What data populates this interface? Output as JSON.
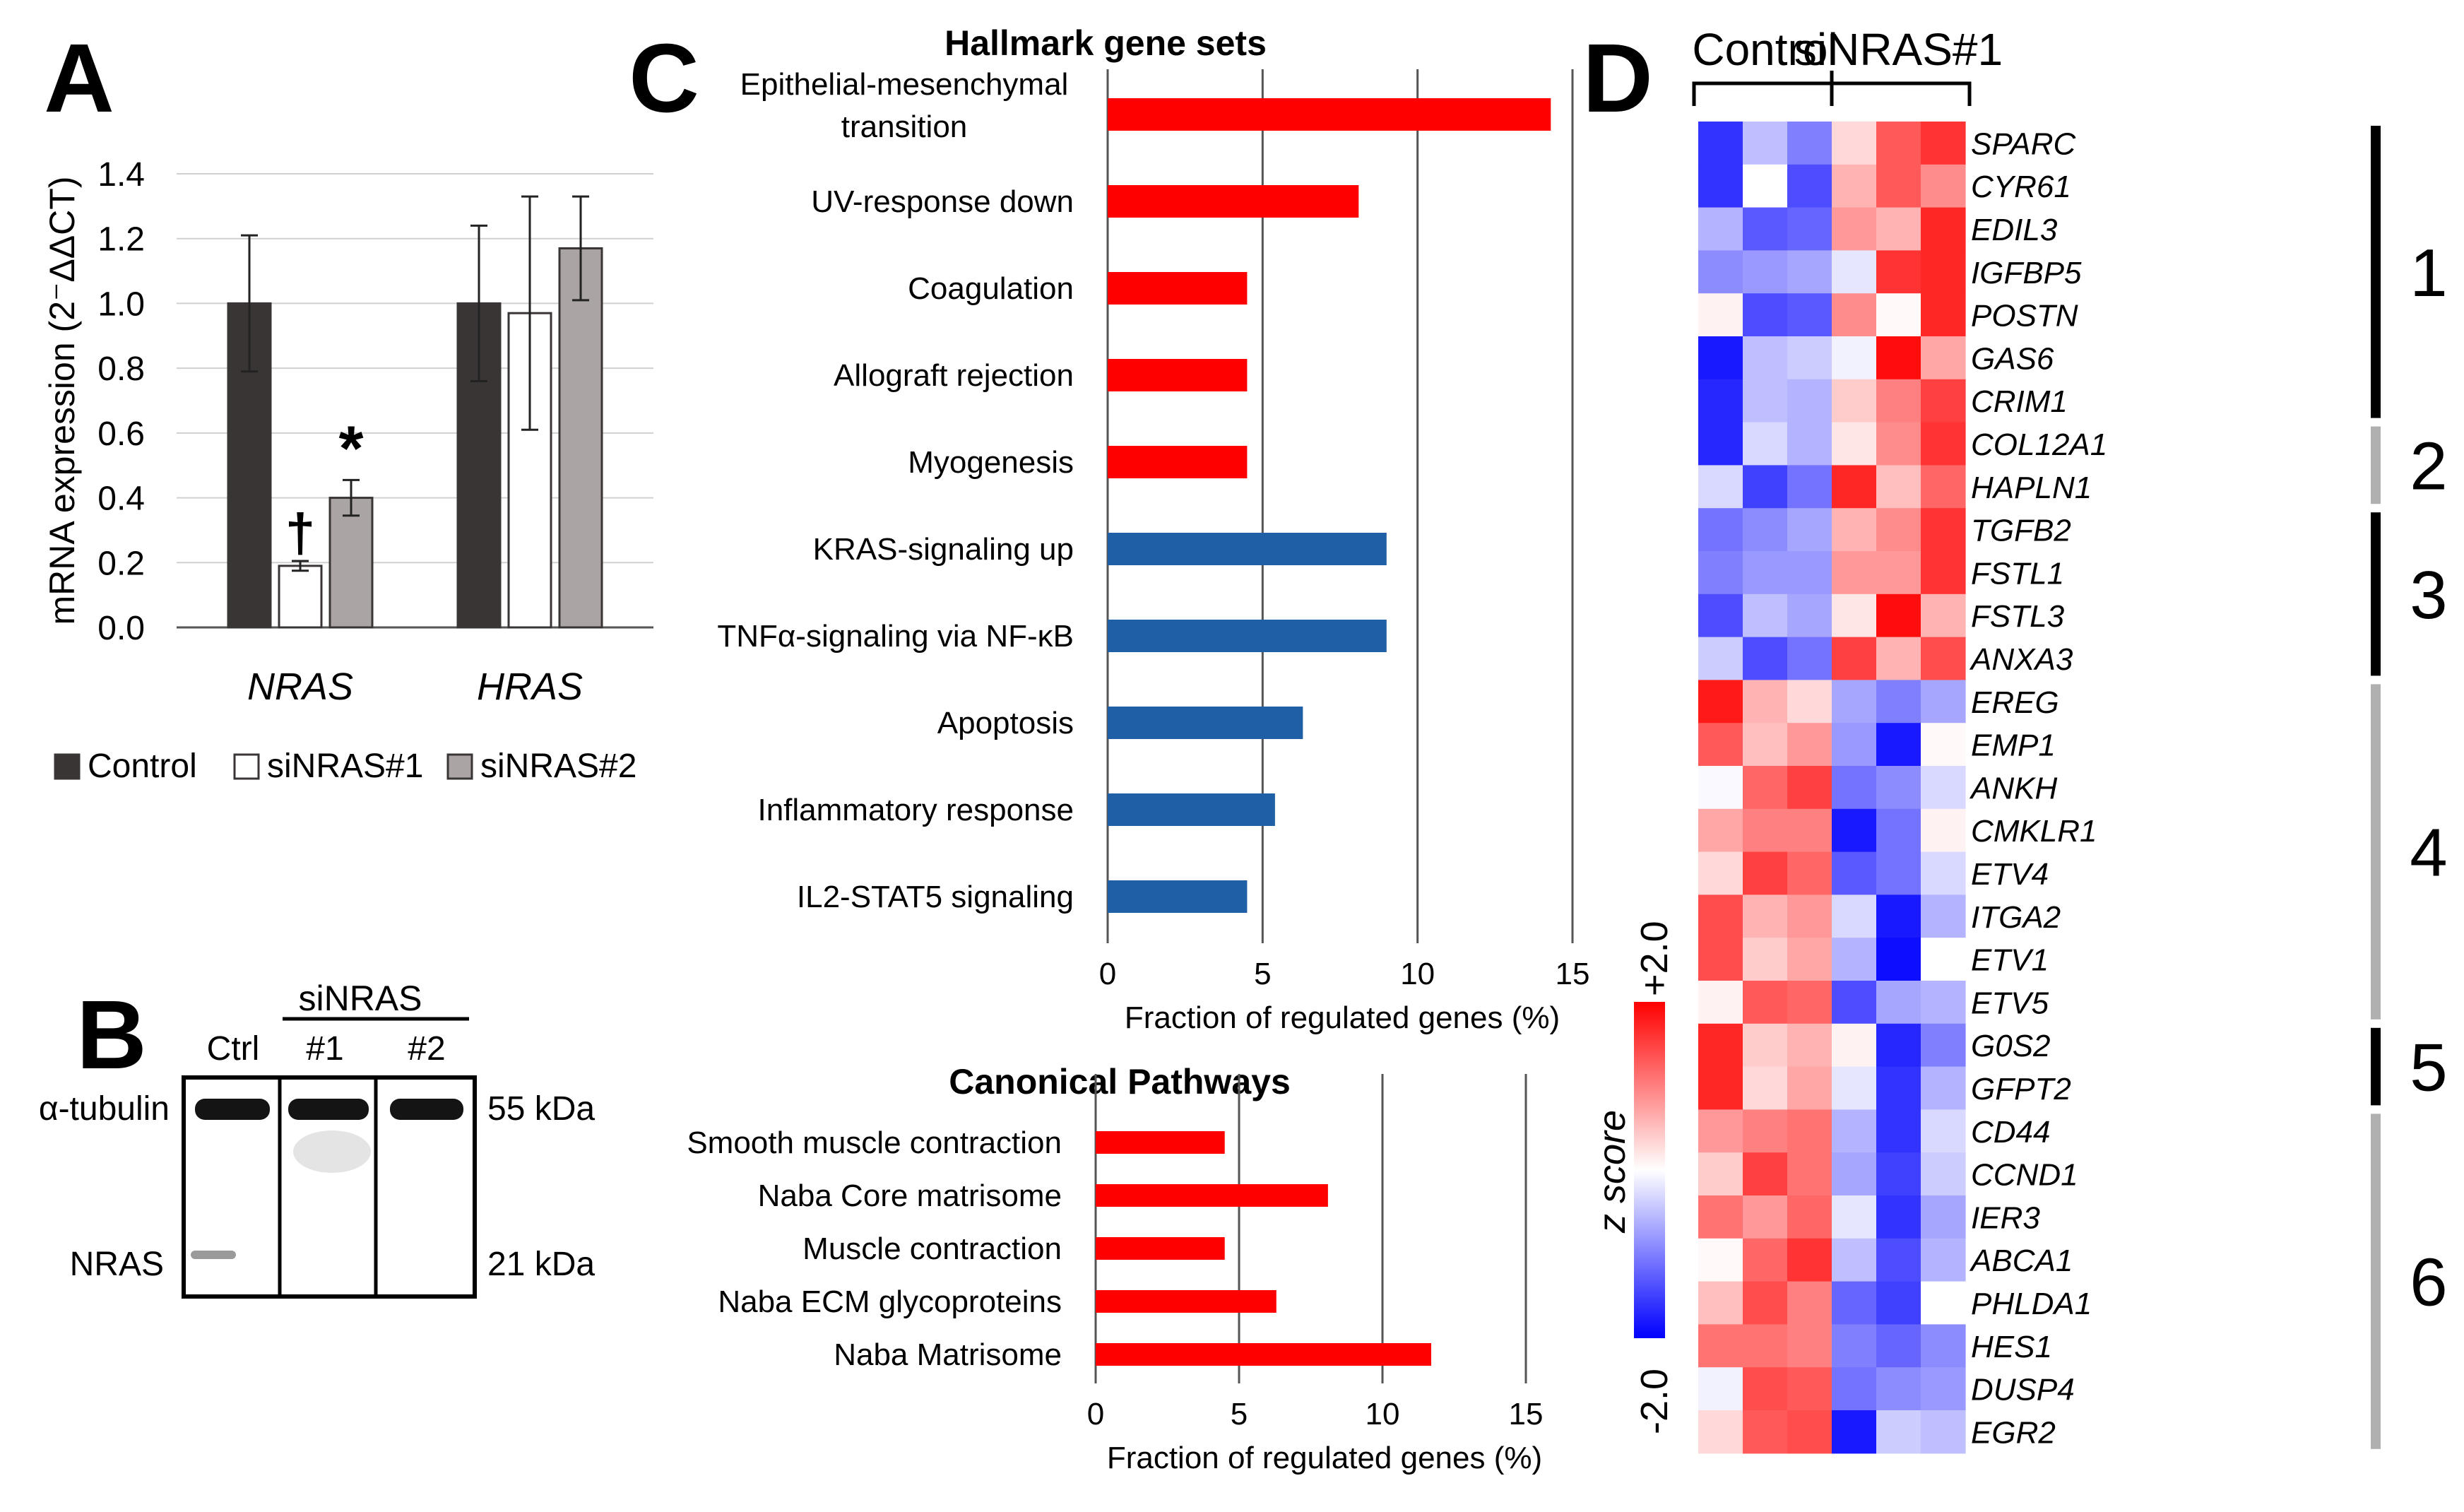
{
  "panels": {
    "a": "A",
    "b": "B",
    "c": "C",
    "d": "D"
  },
  "chart_data": [
    {
      "panel": "A",
      "type": "bar",
      "ylabel": "mRNA expression (2⁻ΔΔCT)",
      "ylim": [
        0,
        1.4
      ],
      "y_ticks": [
        "0.0",
        "0.2",
        "0.4",
        "0.6",
        "0.8",
        "1.0",
        "1.2",
        "1.4"
      ],
      "categories": [
        "NRAS",
        "HRAS"
      ],
      "series": [
        {
          "name": "Control",
          "color": "#3a3535",
          "values": [
            1.0,
            1.0
          ],
          "errors": [
            0.21,
            0.24
          ]
        },
        {
          "name": "siNRAS#1",
          "color": "#ffffff",
          "values": [
            0.19,
            0.97
          ],
          "errors": [
            0.015,
            0.36
          ]
        },
        {
          "name": "siNRAS#2",
          "color": "#aaa4a4",
          "values": [
            0.4,
            1.17
          ],
          "errors": [
            0.055,
            0.16
          ]
        }
      ],
      "annotations": [
        {
          "category": "NRAS",
          "series": "siNRAS#1",
          "text": "†"
        },
        {
          "category": "NRAS",
          "series": "siNRAS#2",
          "text": "*"
        }
      ],
      "grid": true,
      "legend_position": "bottom"
    },
    {
      "panel": "C",
      "type": "bar",
      "orientation": "horizontal",
      "title": "Hallmark gene sets",
      "xlabel": "Fraction of regulated genes (%)",
      "xlim": [
        0,
        15
      ],
      "x_ticks": [
        "0",
        "5",
        "10",
        "15"
      ],
      "categories": [
        "Epithelial-mesenchymal transition",
        "UV-response down",
        "Coagulation",
        "Allograft rejection",
        "Myogenesis",
        "KRAS-signaling up",
        "TNFα-signaling via NF-κB",
        "Apoptosis",
        "Inflammatory response",
        "IL2-STAT5 signaling"
      ],
      "category_lines": [
        [
          "Epithelial-mesenchymal",
          "transition"
        ],
        [
          "UV-response down"
        ],
        [
          "Coagulation"
        ],
        [
          "Allograft rejection"
        ],
        [
          "Myogenesis"
        ],
        [
          "KRAS-signaling up"
        ],
        [
          "TNFα-signaling via NF-κB"
        ],
        [
          "Apoptosis"
        ],
        [
          "Inflammatory response"
        ],
        [
          "IL2-STAT5 signaling"
        ]
      ],
      "values": [
        14.3,
        8.1,
        4.5,
        4.5,
        4.5,
        9.0,
        9.0,
        6.3,
        5.4,
        4.5
      ],
      "colors": [
        "#ff0000",
        "#ff0000",
        "#ff0000",
        "#ff0000",
        "#ff0000",
        "#1f5fa6",
        "#1f5fa6",
        "#1f5fa6",
        "#1f5fa6",
        "#1f5fa6"
      ],
      "grid": true
    },
    {
      "panel": "C",
      "type": "bar",
      "orientation": "horizontal",
      "title": "Canonical Pathways",
      "xlabel": "Fraction of regulated genes (%)",
      "xlim": [
        0,
        15
      ],
      "x_ticks": [
        "0",
        "5",
        "10",
        "15"
      ],
      "categories": [
        "Smooth muscle contraction",
        "Naba Core matrisome",
        "Muscle contraction",
        "Naba ECM glycoproteins",
        "Naba Matrisome"
      ],
      "values": [
        4.5,
        8.1,
        4.5,
        6.3,
        11.7
      ],
      "colors": [
        "#ff0000",
        "#ff0000",
        "#ff0000",
        "#ff0000",
        "#ff0000"
      ],
      "grid": true
    },
    {
      "panel": "D",
      "type": "heatmap",
      "column_groups": [
        "Control",
        "siNRAS#1"
      ],
      "columns_per_group": 3,
      "rows": [
        "SPARC",
        "CYR61",
        "EDIL3",
        "IGFBP5",
        "POSTN",
        "GAS6",
        "CRIM1",
        "COL12A1",
        "HAPLN1",
        "TGFB2",
        "FSTL1",
        "FSTL3",
        "ANXA3",
        "EREG",
        "EMP1",
        "ANKH",
        "CMKLR1",
        "ETV4",
        "ITGA2",
        "ETV1",
        "ETV5",
        "G0S2",
        "GFPT2",
        "CD44",
        "CCND1",
        "IER3",
        "ABCA1",
        "PHLDA1",
        "HES1",
        "DUSP4",
        "EGR2"
      ],
      "values": [
        [
          -1.6,
          -0.5,
          -1.0,
          0.3,
          1.3,
          1.6
        ],
        [
          -1.6,
          0.0,
          -1.4,
          0.6,
          1.3,
          0.9
        ],
        [
          -0.6,
          -1.3,
          -1.2,
          0.8,
          0.6,
          1.7
        ],
        [
          -0.9,
          -0.8,
          -0.7,
          -0.2,
          1.6,
          1.7
        ],
        [
          0.1,
          -1.4,
          -1.3,
          0.9,
          0.05,
          1.7
        ],
        [
          -1.8,
          -0.5,
          -0.4,
          -0.1,
          1.9,
          0.7
        ],
        [
          -1.7,
          -0.5,
          -0.6,
          0.4,
          1.0,
          1.5
        ],
        [
          -1.7,
          -0.3,
          -0.6,
          0.2,
          0.9,
          1.6
        ],
        [
          -0.3,
          -1.5,
          -1.1,
          1.7,
          0.5,
          1.2
        ],
        [
          -1.1,
          -0.9,
          -0.7,
          0.6,
          0.9,
          1.6
        ],
        [
          -1.0,
          -0.8,
          -0.8,
          0.8,
          0.8,
          1.6
        ],
        [
          -1.4,
          -0.5,
          -0.7,
          0.2,
          1.9,
          0.6
        ],
        [
          -0.4,
          -1.4,
          -1.1,
          1.5,
          0.6,
          1.4
        ],
        [
          1.8,
          0.6,
          0.3,
          -0.7,
          -1.0,
          -0.7
        ],
        [
          1.3,
          0.5,
          0.8,
          -0.8,
          -1.8,
          0.05
        ],
        [
          -0.05,
          1.2,
          1.5,
          -1.1,
          -0.9,
          -0.3
        ],
        [
          0.7,
          1.0,
          1.0,
          -1.8,
          -1.1,
          0.1
        ],
        [
          0.3,
          1.5,
          1.2,
          -1.3,
          -1.1,
          -0.3
        ],
        [
          1.4,
          0.6,
          0.8,
          -0.3,
          -1.8,
          -0.6
        ],
        [
          1.4,
          0.4,
          0.7,
          -0.6,
          -1.9,
          0.0
        ],
        [
          0.1,
          1.3,
          1.2,
          -1.4,
          -0.7,
          -0.6
        ],
        [
          1.7,
          0.4,
          0.6,
          0.1,
          -1.7,
          -1.0
        ],
        [
          1.7,
          0.3,
          0.7,
          -0.2,
          -1.6,
          -0.6
        ],
        [
          0.8,
          1.0,
          1.1,
          -0.6,
          -1.6,
          -0.3
        ],
        [
          0.4,
          1.5,
          1.1,
          -0.7,
          -1.5,
          -0.4
        ],
        [
          1.1,
          0.8,
          1.2,
          -0.2,
          -1.6,
          -0.7
        ],
        [
          0.05,
          1.2,
          1.6,
          -0.5,
          -1.4,
          -0.6
        ],
        [
          0.5,
          1.4,
          1.0,
          -1.2,
          -1.5,
          0.0
        ],
        [
          1.1,
          1.1,
          1.0,
          -1.0,
          -1.2,
          -0.9
        ],
        [
          -0.1,
          1.4,
          1.3,
          -1.1,
          -0.9,
          -0.8
        ],
        [
          0.3,
          1.3,
          1.4,
          -1.8,
          -0.4,
          -0.5
        ]
      ],
      "clusters": [
        {
          "label": "1",
          "rows": [
            "SPARC",
            "CRIM1"
          ],
          "color": "#000000"
        },
        {
          "label": "2",
          "rows": [
            "COL12A1",
            "HAPLN1"
          ],
          "color": "#b0b0b0"
        },
        {
          "label": "3",
          "rows": [
            "TGFB2",
            "ANXA3"
          ],
          "color": "#000000"
        },
        {
          "label": "4",
          "rows": [
            "EREG",
            "ETV5"
          ],
          "color": "#b0b0b0"
        },
        {
          "label": "5",
          "rows": [
            "G0S2",
            "GFPT2"
          ],
          "color": "#000000"
        },
        {
          "label": "6",
          "rows": [
            "CD44",
            "EGR2"
          ],
          "color": "#b0b0b0"
        }
      ],
      "colorbar": {
        "label": "z score",
        "max_label": "+2.0",
        "min_label": "-2.0",
        "range": [
          -2.0,
          2.0
        ],
        "colors": [
          "#0000ff",
          "#ffffff",
          "#ff0000"
        ]
      }
    }
  ],
  "blot": {
    "title": "siNRAS",
    "lanes": [
      "Ctrl",
      "#1",
      "#2"
    ],
    "rows": [
      {
        "label": "α-tubulin",
        "size": "55 kDa"
      },
      {
        "label": "NRAS",
        "size": "21 kDa"
      }
    ]
  }
}
